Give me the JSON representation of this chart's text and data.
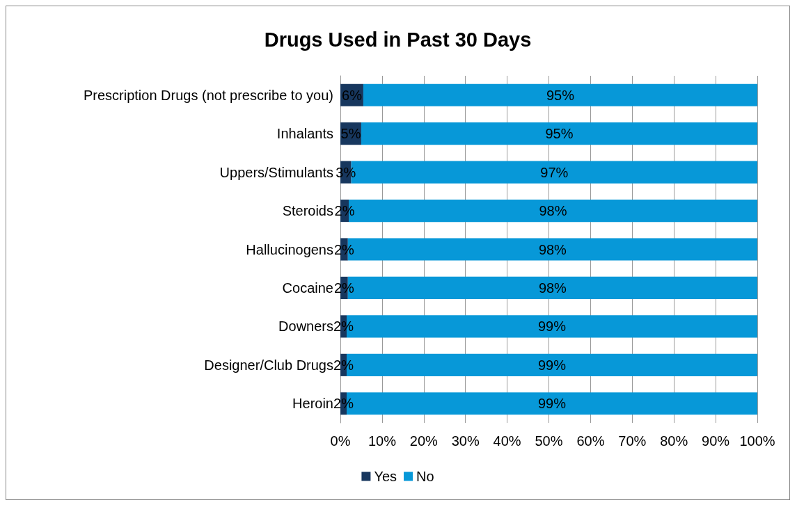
{
  "chart_data": {
    "type": "bar",
    "orientation": "horizontal",
    "stacked": true,
    "title": "Drugs Used in Past 30 Days",
    "categories": [
      "Prescription Drugs (not prescribe to you)",
      "Inhalants",
      "Uppers/Stimulants",
      "Steroids",
      "Hallucinogens",
      "Cocaine",
      "Downers",
      "Designer/Club Drugs",
      "Heroin"
    ],
    "series": [
      {
        "name": "Yes",
        "color": "#17375e",
        "values": [
          5.5,
          5,
          2.6,
          2,
          1.8,
          1.8,
          1.5,
          1.5,
          1.5
        ],
        "value_labels": [
          "6%",
          "5%",
          "3%",
          "2%",
          "2%",
          "2%",
          "2%",
          "2%",
          "2%"
        ]
      },
      {
        "name": "No",
        "color": "#0798d8",
        "values": [
          94.5,
          95,
          97.4,
          98,
          98.2,
          98.2,
          98.5,
          98.5,
          98.5
        ],
        "value_labels": [
          "95%",
          "95%",
          "97%",
          "98%",
          "98%",
          "98%",
          "99%",
          "99%",
          "99%"
        ]
      }
    ],
    "xlim": [
      0,
      100
    ],
    "xticks": [
      {
        "value": 0,
        "label": "0%"
      },
      {
        "value": 10,
        "label": "10%"
      },
      {
        "value": 20,
        "label": "20%"
      },
      {
        "value": 30,
        "label": "30%"
      },
      {
        "value": 40,
        "label": "40%"
      },
      {
        "value": 50,
        "label": "50%"
      },
      {
        "value": 60,
        "label": "60%"
      },
      {
        "value": 70,
        "label": "70%"
      },
      {
        "value": 80,
        "label": "80%"
      },
      {
        "value": 90,
        "label": "90%"
      },
      {
        "value": 100,
        "label": "100%"
      }
    ],
    "grid": "x",
    "legend": "bottom"
  }
}
